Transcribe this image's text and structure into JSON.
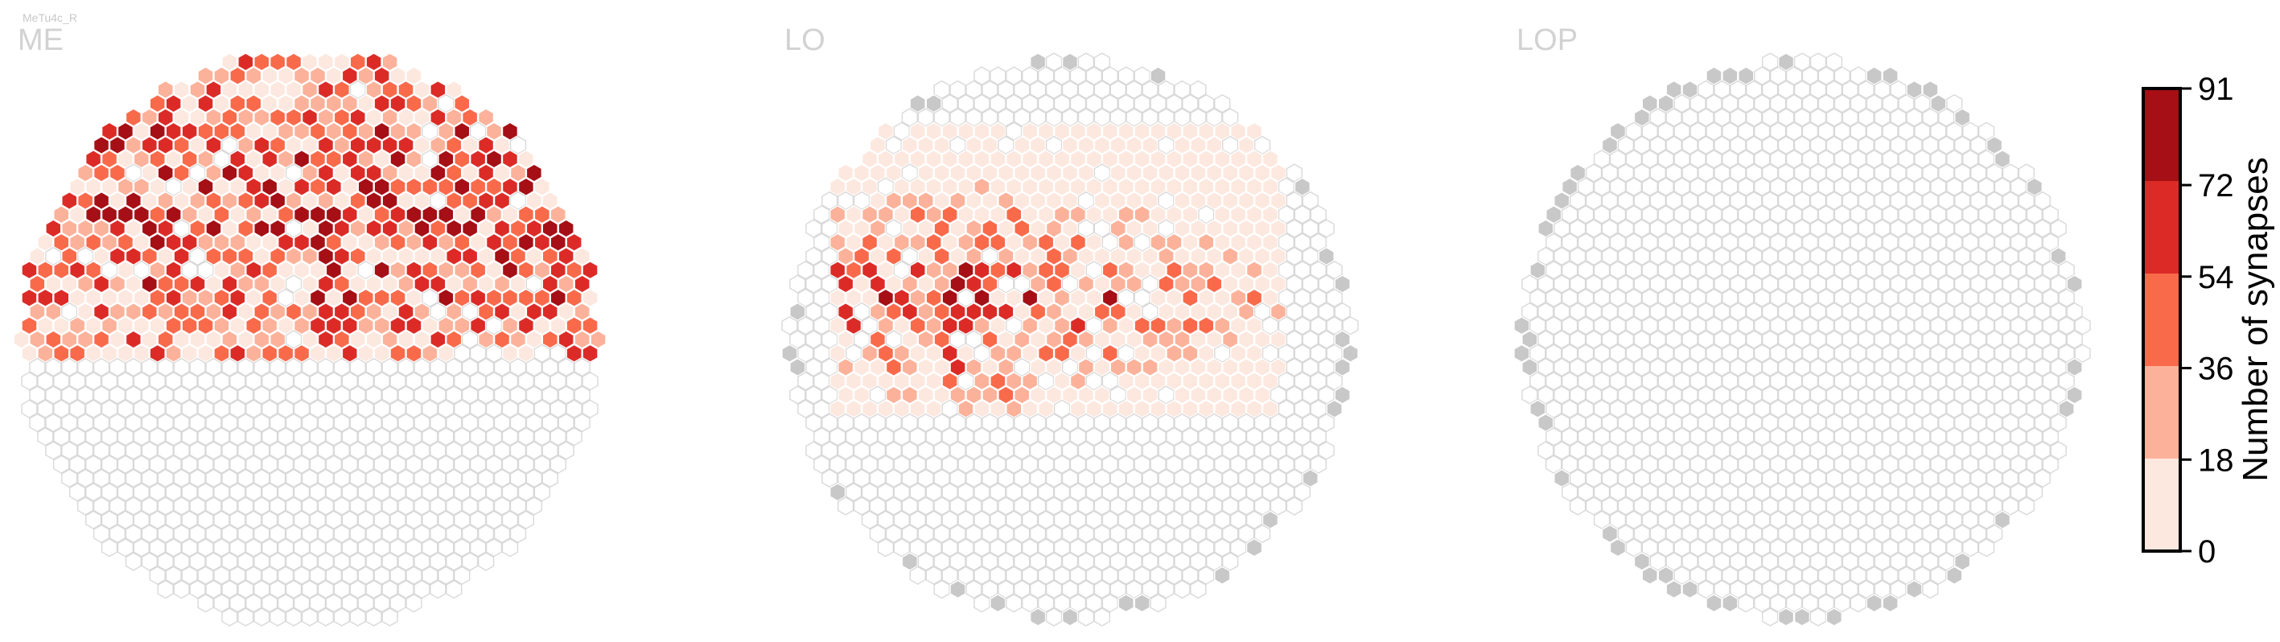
{
  "cell_type": "MeTu4c_R",
  "colors": {
    "edge_gray": "#d9d9d9",
    "filled_gray": "#c8c8c8",
    "bins": [
      "#fde8df",
      "#fcb29a",
      "#f96a4b",
      "#dc2b27",
      "#a50f15"
    ]
  },
  "chart_data": [
    {
      "type": "heatmap",
      "title": "ME",
      "grid": "hexagonal columns",
      "value_range": [
        0,
        91
      ],
      "notes": "Upper half of columns innervated; hotspots concentrated top-center and right side."
    },
    {
      "type": "heatmap",
      "title": "LO",
      "grid": "hexagonal columns",
      "value_range": [
        0,
        91
      ],
      "notes": "Central band innervated; strongest columns left of center."
    },
    {
      "type": "heatmap",
      "title": "LOP",
      "grid": "hexagonal columns",
      "value_range": [
        0,
        91
      ],
      "notes": "No synapses; rim columns shown as gray."
    }
  ],
  "colorbar": {
    "label": "Number of synapses",
    "ticks": [
      "0",
      "18",
      "36",
      "54",
      "72",
      "91"
    ],
    "min": 0,
    "max": 91
  }
}
